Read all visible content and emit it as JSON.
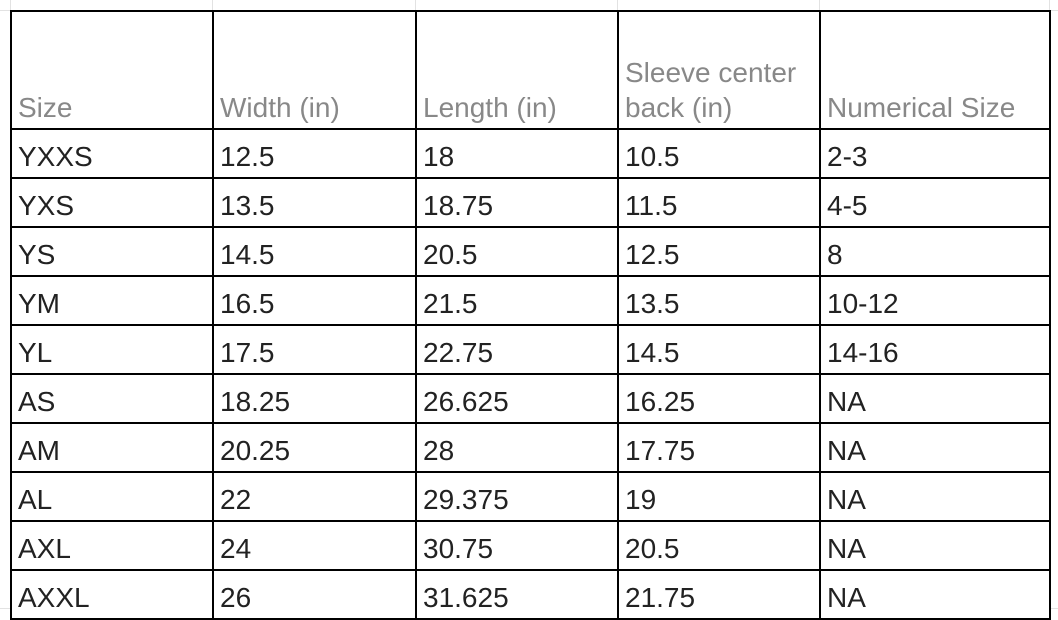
{
  "table": {
    "headers": [
      "Size",
      "Width (in)",
      "Length (in)",
      "Sleeve center back (in)",
      "Numerical Size"
    ],
    "rows": [
      [
        "YXXS",
        "12.5",
        "18",
        "10.5",
        "2-3"
      ],
      [
        "YXS",
        "13.5",
        "18.75",
        "11.5",
        "4-5"
      ],
      [
        "YS",
        "14.5",
        "20.5",
        "12.5",
        "8"
      ],
      [
        "YM",
        "16.5",
        "21.5",
        "13.5",
        "10-12"
      ],
      [
        "YL",
        "17.5",
        "22.75",
        "14.5",
        "14-16"
      ],
      [
        "AS",
        "18.25",
        "26.625",
        "16.25",
        "NA"
      ],
      [
        "AM",
        "20.25",
        "28",
        "17.75",
        "NA"
      ],
      [
        "AL",
        "22",
        "29.375",
        "19",
        "NA"
      ],
      [
        "AXL",
        "24",
        "30.75",
        "20.5",
        "NA"
      ],
      [
        "AXXL",
        "26",
        "31.625",
        "21.75",
        "NA"
      ]
    ]
  }
}
